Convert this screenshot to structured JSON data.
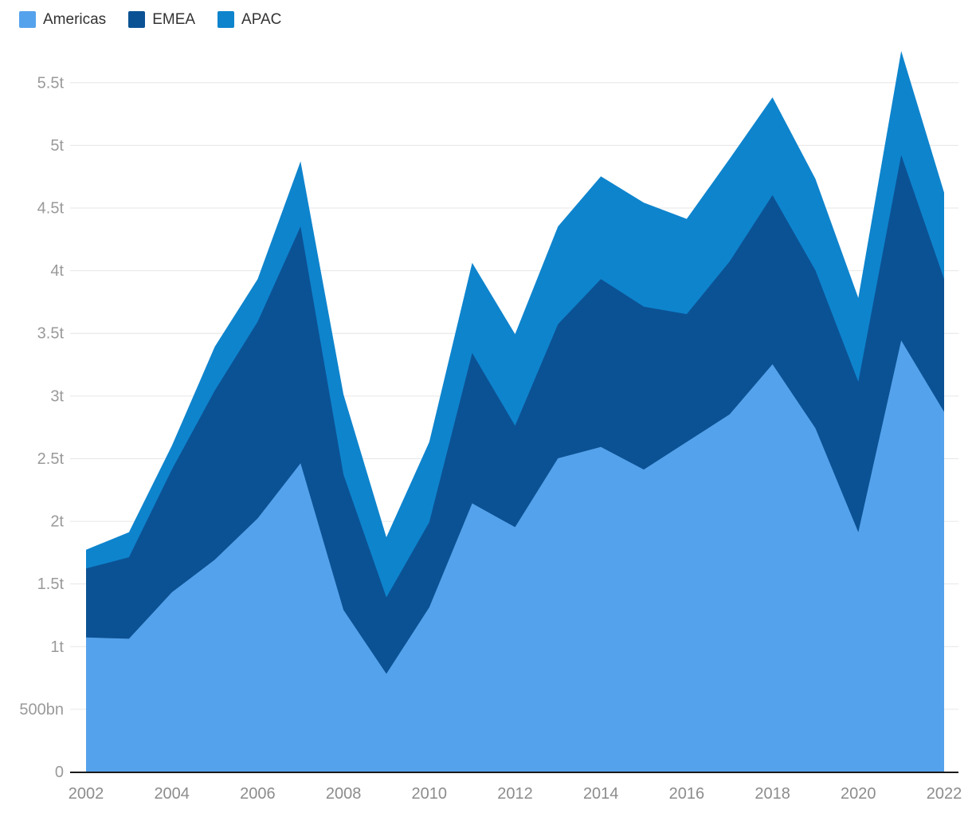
{
  "chart_data": {
    "type": "area",
    "stacked": true,
    "title": "",
    "xlabel": "",
    "ylabel": "",
    "legend_position": "top-left",
    "grid": "horizontal",
    "ylim": [
      0,
      5.75
    ],
    "x": [
      2002,
      2003,
      2004,
      2005,
      2006,
      2007,
      2008,
      2009,
      2010,
      2011,
      2012,
      2013,
      2014,
      2015,
      2016,
      2017,
      2018,
      2019,
      2020,
      2021,
      2022
    ],
    "series": [
      {
        "name": "Americas",
        "color": "#55a2ec",
        "values": [
          1.07,
          1.06,
          1.43,
          1.69,
          2.02,
          2.46,
          1.29,
          0.78,
          1.31,
          2.14,
          1.95,
          2.5,
          2.59,
          2.41,
          2.63,
          2.85,
          3.25,
          2.74,
          1.91,
          3.44,
          2.87
        ]
      },
      {
        "name": "EMEA",
        "color": "#0b5294",
        "values": [
          0.55,
          0.65,
          0.98,
          1.35,
          1.57,
          1.89,
          1.08,
          0.61,
          0.68,
          1.2,
          0.81,
          1.07,
          1.34,
          1.3,
          1.02,
          1.22,
          1.35,
          1.26,
          1.2,
          1.48,
          1.06
        ]
      },
      {
        "name": "APAC",
        "color": "#0e84cd",
        "values": [
          0.15,
          0.2,
          0.19,
          0.35,
          0.34,
          0.52,
          0.64,
          0.48,
          0.64,
          0.72,
          0.73,
          0.78,
          0.82,
          0.83,
          0.76,
          0.82,
          0.78,
          0.73,
          0.67,
          0.83,
          0.69
        ]
      }
    ],
    "yticks": [
      {
        "v": 0,
        "label": "0"
      },
      {
        "v": 0.5,
        "label": "500bn"
      },
      {
        "v": 1,
        "label": "1t"
      },
      {
        "v": 1.5,
        "label": "1.5t"
      },
      {
        "v": 2,
        "label": "2t"
      },
      {
        "v": 2.5,
        "label": "2.5t"
      },
      {
        "v": 3,
        "label": "3t"
      },
      {
        "v": 3.5,
        "label": "3.5t"
      },
      {
        "v": 4,
        "label": "4t"
      },
      {
        "v": 4.5,
        "label": "4.5t"
      },
      {
        "v": 5,
        "label": "5t"
      },
      {
        "v": 5.5,
        "label": "5.5t"
      }
    ],
    "xticks": [
      2002,
      2004,
      2006,
      2008,
      2010,
      2012,
      2014,
      2016,
      2018,
      2020,
      2022
    ]
  },
  "colors": {
    "gridline": "#e6e6e6",
    "axis_line": "#1a1a1a",
    "ytick_text": "#9a9a9a",
    "xtick_text": "#8c8c8c",
    "legend_text": "#333333"
  }
}
